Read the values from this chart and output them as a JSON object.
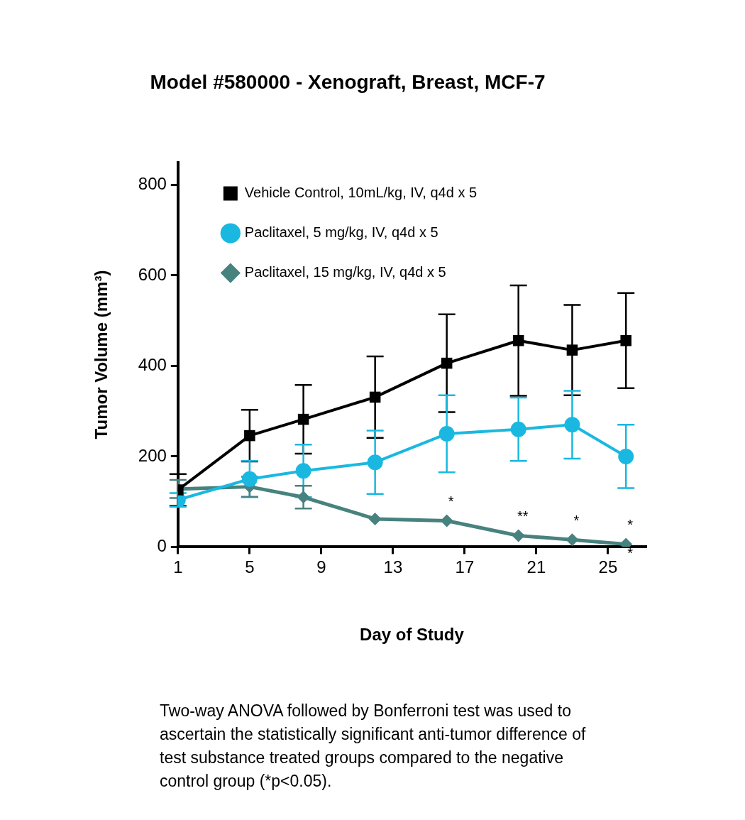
{
  "chart_data": {
    "type": "line",
    "title": "Model #580000 - Xenograft, Breast, MCF-7",
    "xlabel": "Day of Study",
    "ylabel": "Tumor Volume (mm³)",
    "x": [
      1,
      5,
      8,
      12,
      16,
      20,
      23,
      26
    ],
    "xlim": [
      1,
      27.1
    ],
    "xticks": [
      1,
      5,
      9,
      13,
      17,
      21,
      25
    ],
    "ylim": [
      0,
      850
    ],
    "yticks": [
      0,
      200,
      400,
      600,
      800
    ],
    "grid": false,
    "legend": "top left",
    "series": [
      {
        "name": "Vehicle Control, 10mL/kg, IV, q4d x 5",
        "color": "#000000",
        "marker": "square",
        "values": [
          126,
          246,
          282,
          331,
          406,
          456,
          435,
          456
        ],
        "errors": [
          35,
          57,
          76,
          90,
          108,
          122,
          100,
          105
        ]
      },
      {
        "name": "Paclitaxel, 5 mg/kg, IV, q4d x 5",
        "color": "#1ab8e0",
        "marker": "circle",
        "values": [
          104,
          150,
          168,
          187,
          250,
          260,
          270,
          200
        ],
        "errors": [
          15,
          40,
          58,
          70,
          85,
          70,
          75,
          70
        ]
      },
      {
        "name": "Paclitaxel, 15 mg/kg, IV, q4d x 5",
        "color": "#48827e",
        "marker": "diamond",
        "values": [
          128,
          133,
          110,
          62,
          58,
          25,
          16,
          6
        ],
        "errors": [
          20,
          22,
          25,
          null,
          null,
          null,
          null,
          null
        ]
      }
    ],
    "annotations": [
      {
        "text": "*",
        "x": 16,
        "y": 58
      },
      {
        "text": "**",
        "x": 20,
        "y": 25
      },
      {
        "text": "*",
        "x": 23,
        "y": 16
      },
      {
        "text": "*",
        "x": 26,
        "y": 6
      },
      {
        "text": "*",
        "x": 26,
        "y": 6
      },
      "Two-way ANOVA followed by Bonferroni test was used to ascertain the statistically significant anti-tumor difference of test substance treated groups compared to the negative control group (*p<0.05)."
    ]
  }
}
